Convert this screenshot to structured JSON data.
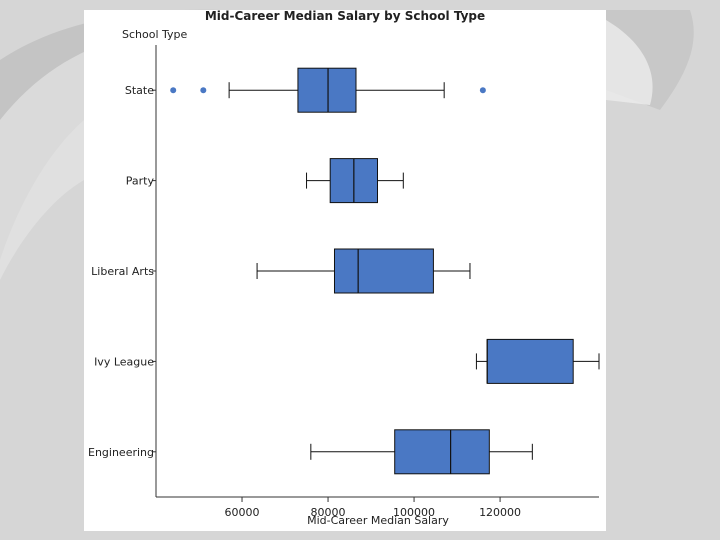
{
  "chart_data": {
    "type": "boxplot",
    "orientation": "horizontal",
    "title": "Mid-Career Median Salary by School Type",
    "ylabel": "School Type",
    "xlabel": "Mid-Career Median Salary",
    "x_ticks": [
      60000,
      80000,
      100000,
      120000
    ],
    "xlim": [
      40000,
      143000
    ],
    "grid": false,
    "colors": {
      "box_fill": "#4a78c4",
      "outlier": "#4a78c4",
      "line": "#111111"
    },
    "categories": [
      "State",
      "Party",
      "Liberal Arts",
      "Ivy League",
      "Engineering"
    ],
    "boxes": [
      {
        "category": "State",
        "whisker_low": 57000,
        "q1": 73000,
        "median": 80000,
        "q3": 86500,
        "whisker_high": 107000,
        "outliers": [
          44000,
          51000,
          116000
        ]
      },
      {
        "category": "Party",
        "whisker_low": 75000,
        "q1": 80500,
        "median": 86000,
        "q3": 91500,
        "whisker_high": 97500,
        "outliers": []
      },
      {
        "category": "Liberal Arts",
        "whisker_low": 63500,
        "q1": 81500,
        "median": 87000,
        "q3": 104500,
        "whisker_high": 113000,
        "outliers": []
      },
      {
        "category": "Ivy League",
        "whisker_low": 114500,
        "q1": 117000,
        "median": 117000,
        "q3": 137000,
        "whisker_high": 143000,
        "outliers": []
      },
      {
        "category": "Engineering",
        "whisker_low": 76000,
        "q1": 95500,
        "median": 108500,
        "q3": 117500,
        "whisker_high": 127500,
        "outliers": []
      }
    ]
  }
}
